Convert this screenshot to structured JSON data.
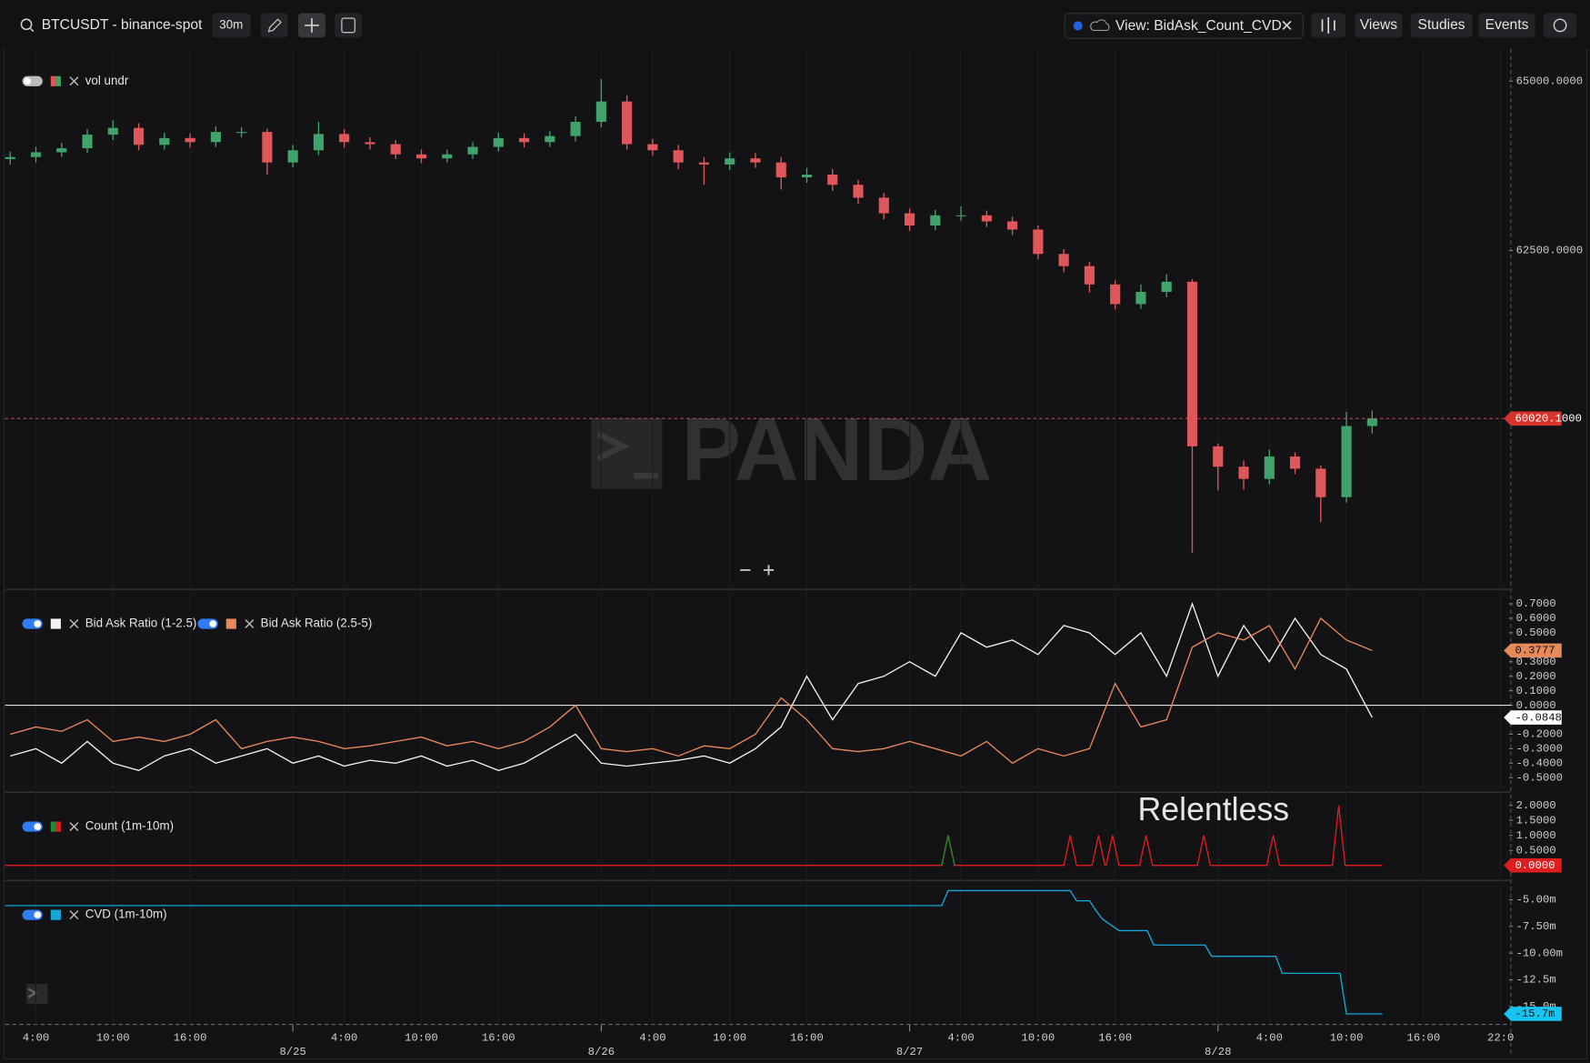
{
  "toolbar": {
    "symbol": "BTCUSDT - binance-spot",
    "interval": "30m",
    "view": "View: BidAsk_Count_CVD",
    "menu": [
      "Views",
      "Studies",
      "Events"
    ]
  },
  "watermark": "PANDA",
  "annotation": "Relentless",
  "time_axis": {
    "xlim": [
      -22.4,
      94.8
    ],
    "xticks": [
      {
        "value": -20,
        "label": "4:00"
      },
      {
        "value": -14,
        "label": "10:00"
      },
      {
        "value": -8,
        "label": "16:00"
      },
      {
        "value": 4,
        "label": "4:00"
      },
      {
        "value": 10,
        "label": "10:00"
      },
      {
        "value": 16,
        "label": "16:00"
      },
      {
        "value": 28,
        "label": "4:00"
      },
      {
        "value": 34,
        "label": "10:00"
      },
      {
        "value": 40,
        "label": "16:00"
      },
      {
        "value": 52,
        "label": "4:00"
      },
      {
        "value": 58,
        "label": "10:00"
      },
      {
        "value": 64,
        "label": "16:00"
      },
      {
        "value": 76,
        "label": "4:00"
      },
      {
        "value": 82,
        "label": "10:00"
      },
      {
        "value": 88,
        "label": "16:00"
      },
      {
        "value": 94,
        "label": "22:0"
      }
    ],
    "day_ticks": [
      {
        "value": 0,
        "label": "8/25"
      },
      {
        "value": 24,
        "label": "8/26"
      },
      {
        "value": 48,
        "label": "8/27"
      },
      {
        "value": 72,
        "label": "8/28"
      }
    ]
  },
  "chart_data": [
    {
      "type": "candlestick",
      "legend": "vol undr",
      "up_color": "#3fa36b",
      "down_color": "#e0575b",
      "x": [
        -22,
        -20,
        -18,
        -16,
        -14,
        -12,
        -10,
        -8,
        -6,
        -4,
        -2,
        0,
        2,
        4,
        6,
        8,
        10,
        12,
        14,
        16,
        18,
        20,
        22,
        24,
        26,
        28,
        30,
        32,
        34,
        36,
        38,
        40,
        42,
        44,
        46,
        48,
        50,
        52,
        54,
        56,
        58,
        60,
        62,
        64,
        66,
        68,
        70,
        72,
        74,
        76,
        78,
        80,
        82,
        84
      ],
      "open": [
        63850,
        63880,
        63950,
        64010,
        64210,
        64310,
        64060,
        64160,
        64100,
        64250,
        64250,
        63800,
        63980,
        64220,
        64100,
        64070,
        63920,
        63860,
        63920,
        64030,
        64160,
        64100,
        64190,
        64400,
        64700,
        64070,
        63980,
        63800,
        63770,
        63860,
        63800,
        63580,
        63620,
        63470,
        63280,
        63050,
        62870,
        63020,
        63020,
        62930,
        62810,
        62450,
        62270,
        62000,
        61710,
        61890,
        62040,
        59610,
        59310,
        59130,
        59460,
        59280,
        58860,
        59910
      ],
      "high": [
        63960,
        64030,
        64090,
        64290,
        64420,
        64380,
        64240,
        64230,
        64330,
        64320,
        64300,
        64060,
        64400,
        64290,
        64170,
        64130,
        63990,
        63990,
        64100,
        64240,
        64230,
        64260,
        64480,
        65030,
        64790,
        64150,
        64060,
        63880,
        63950,
        63940,
        63880,
        63720,
        63700,
        63540,
        63350,
        63120,
        63100,
        63150,
        63090,
        63000,
        62870,
        62520,
        62330,
        62060,
        62000,
        62150,
        62080,
        59650,
        59400,
        59560,
        59520,
        59330,
        60120,
        60140
      ],
      "low": [
        63770,
        63800,
        63880,
        63940,
        64130,
        63980,
        63990,
        64020,
        64030,
        64170,
        63620,
        63730,
        63910,
        64020,
        63990,
        63850,
        63790,
        63800,
        63850,
        63960,
        64020,
        64030,
        64110,
        64320,
        63990,
        63900,
        63700,
        63470,
        63690,
        63720,
        63400,
        63500,
        63380,
        63190,
        62960,
        62790,
        62800,
        62940,
        62850,
        62730,
        62370,
        62180,
        61880,
        61630,
        61640,
        61810,
        58040,
        58960,
        58970,
        59050,
        59200,
        58490,
        58780,
        59800
      ],
      "close": [
        63880,
        63950,
        64010,
        64210,
        64310,
        64060,
        64160,
        64100,
        64250,
        64250,
        63800,
        63980,
        64220,
        64100,
        64070,
        63920,
        63860,
        63920,
        64030,
        64160,
        64100,
        64190,
        64400,
        64700,
        64070,
        63980,
        63800,
        63770,
        63860,
        63800,
        63580,
        63620,
        63470,
        63280,
        63050,
        62870,
        63020,
        63020,
        62930,
        62810,
        62450,
        62270,
        62000,
        61710,
        61890,
        62040,
        59610,
        59310,
        59130,
        59460,
        59280,
        58860,
        59910,
        60020
      ],
      "ylim": [
        57500,
        65479
      ],
      "yticks": [
        {
          "value": 65000,
          "label": "65000.0000"
        },
        {
          "value": 62500,
          "label": "62500.0000"
        }
      ],
      "last_price": {
        "value": 60020.1,
        "label": "60020.1000"
      }
    },
    {
      "type": "line",
      "zero_line": true,
      "x": [
        -22,
        -20,
        -18,
        -16,
        -14,
        -12,
        -10,
        -8,
        -6,
        -4,
        -2,
        0,
        2,
        4,
        6,
        8,
        10,
        12,
        14,
        16,
        18,
        20,
        22,
        24,
        26,
        28,
        30,
        32,
        34,
        36,
        38,
        40,
        42,
        44,
        46,
        48,
        50,
        52,
        54,
        56,
        58,
        60,
        62,
        64,
        66,
        68,
        70,
        72,
        74,
        76,
        78,
        80,
        82,
        84
      ],
      "series": [
        {
          "name": "Bid Ask Ratio (1-2.5)",
          "color": "#f2f2f2",
          "last_label": "-0.0848",
          "values": [
            -0.35,
            -0.3,
            -0.4,
            -0.25,
            -0.4,
            -0.45,
            -0.35,
            -0.3,
            -0.4,
            -0.35,
            -0.3,
            -0.4,
            -0.35,
            -0.42,
            -0.38,
            -0.4,
            -0.35,
            -0.42,
            -0.38,
            -0.45,
            -0.4,
            -0.3,
            -0.2,
            -0.4,
            -0.42,
            -0.4,
            -0.38,
            -0.35,
            -0.4,
            -0.3,
            -0.15,
            0.2,
            -0.1,
            0.15,
            0.2,
            0.3,
            0.2,
            0.5,
            0.4,
            0.45,
            0.35,
            0.55,
            0.5,
            0.35,
            0.5,
            0.2,
            0.7,
            0.2,
            0.55,
            0.3,
            0.6,
            0.35,
            0.25,
            -0.0848
          ]
        },
        {
          "name": "Bid Ask Ratio (2.5-5)",
          "color": "#e8895a",
          "last_label": "0.3777",
          "values": [
            -0.2,
            -0.15,
            -0.18,
            -0.1,
            -0.25,
            -0.22,
            -0.25,
            -0.2,
            -0.1,
            -0.3,
            -0.25,
            -0.22,
            -0.25,
            -0.3,
            -0.28,
            -0.25,
            -0.22,
            -0.28,
            -0.25,
            -0.3,
            -0.25,
            -0.15,
            0.0,
            -0.3,
            -0.32,
            -0.3,
            -0.35,
            -0.28,
            -0.3,
            -0.2,
            0.05,
            -0.1,
            -0.3,
            -0.32,
            -0.3,
            -0.25,
            -0.3,
            -0.35,
            -0.25,
            -0.4,
            -0.3,
            -0.35,
            -0.3,
            0.15,
            -0.15,
            -0.1,
            0.4,
            0.5,
            0.45,
            0.55,
            0.25,
            0.6,
            0.45,
            0.3777
          ]
        }
      ],
      "ylim": [
        -0.6,
        0.8
      ],
      "yticks": [
        {
          "value": 0.7,
          "label": "0.7000"
        },
        {
          "value": 0.6,
          "label": "0.6000"
        },
        {
          "value": 0.5,
          "label": "0.5000"
        },
        {
          "value": 0.3,
          "label": "0.3000"
        },
        {
          "value": 0.2,
          "label": "0.2000"
        },
        {
          "value": 0.1,
          "label": "0.1000"
        },
        {
          "value": 0,
          "label": "0.0000"
        },
        {
          "value": -0.2,
          "label": "-0.2000"
        },
        {
          "value": -0.3,
          "label": "-0.3000"
        },
        {
          "value": -0.4,
          "label": "-0.4000"
        },
        {
          "value": -0.5,
          "label": "-0.5000"
        }
      ]
    },
    {
      "type": "line",
      "x": [
        -22.4,
        50.5,
        51,
        51.5,
        60,
        60.5,
        61,
        62.2,
        62.7,
        63.2,
        63.3,
        63.8,
        64.3,
        65.9,
        66.4,
        66.9,
        70.4,
        70.9,
        71.4,
        75.8,
        76.3,
        76.8,
        80.9,
        81.4,
        81.9,
        84.8
      ],
      "series": [
        {
          "name": "Count (1m-10m)",
          "color": "#e01d1d",
          "last_label": "0.0000",
          "colors": [
            "#e01d1d",
            "#e01d1d",
            "#1e8c33",
            "#e01d1d",
            "#e01d1d",
            "#e01d1d",
            "#e01d1d",
            "#e01d1d",
            "#e01d1d",
            "#e01d1d",
            "#e01d1d",
            "#e01d1d",
            "#e01d1d",
            "#e01d1d",
            "#e01d1d",
            "#e01d1d",
            "#e01d1d",
            "#e01d1d",
            "#e01d1d",
            "#e01d1d",
            "#e01d1d",
            "#e01d1d",
            "#e01d1d",
            "#e01d1d",
            "#e01d1d",
            "#e01d1d"
          ],
          "values": [
            0,
            0,
            1,
            0,
            0,
            1,
            0,
            0,
            1,
            0,
            0,
            1,
            0,
            0,
            1,
            0,
            0,
            1,
            0,
            0,
            1,
            0,
            0,
            2,
            0,
            0
          ]
        }
      ],
      "ylim": [
        -0.5,
        2.44
      ],
      "yticks": [
        {
          "value": 2,
          "label": "2.0000"
        },
        {
          "value": 1.5,
          "label": "1.5000"
        },
        {
          "value": 1,
          "label": "1.0000"
        },
        {
          "value": 0.5,
          "label": "0.5000"
        }
      ]
    },
    {
      "type": "line",
      "x": [
        -22.4,
        50.5,
        51,
        60.5,
        61,
        62,
        62.5,
        63,
        64.3,
        66.5,
        67,
        71,
        71.5,
        76.5,
        77,
        81.5,
        82,
        84.8
      ],
      "series": [
        {
          "name": "CVD (1m-10m)",
          "color": "#16a8d8",
          "last_label": "-15.7m",
          "values": [
            -5.55,
            -5.55,
            -4.15,
            -4.15,
            -5.1,
            -5.1,
            -6,
            -6.8,
            -7.9,
            -7.9,
            -9.25,
            -9.25,
            -10.3,
            -10.3,
            -11.9,
            -11.9,
            -15.7,
            -15.7
          ]
        }
      ],
      "ylim": [
        -16.69,
        -3.19
      ],
      "yticks": [
        {
          "value": -5,
          "label": "-5.00m"
        },
        {
          "value": -7.5,
          "label": "-7.50m"
        },
        {
          "value": -10,
          "label": "-10.00m"
        },
        {
          "value": -12.5,
          "label": "-12.5m"
        },
        {
          "value": -15,
          "label": "-15.0m"
        }
      ]
    }
  ]
}
